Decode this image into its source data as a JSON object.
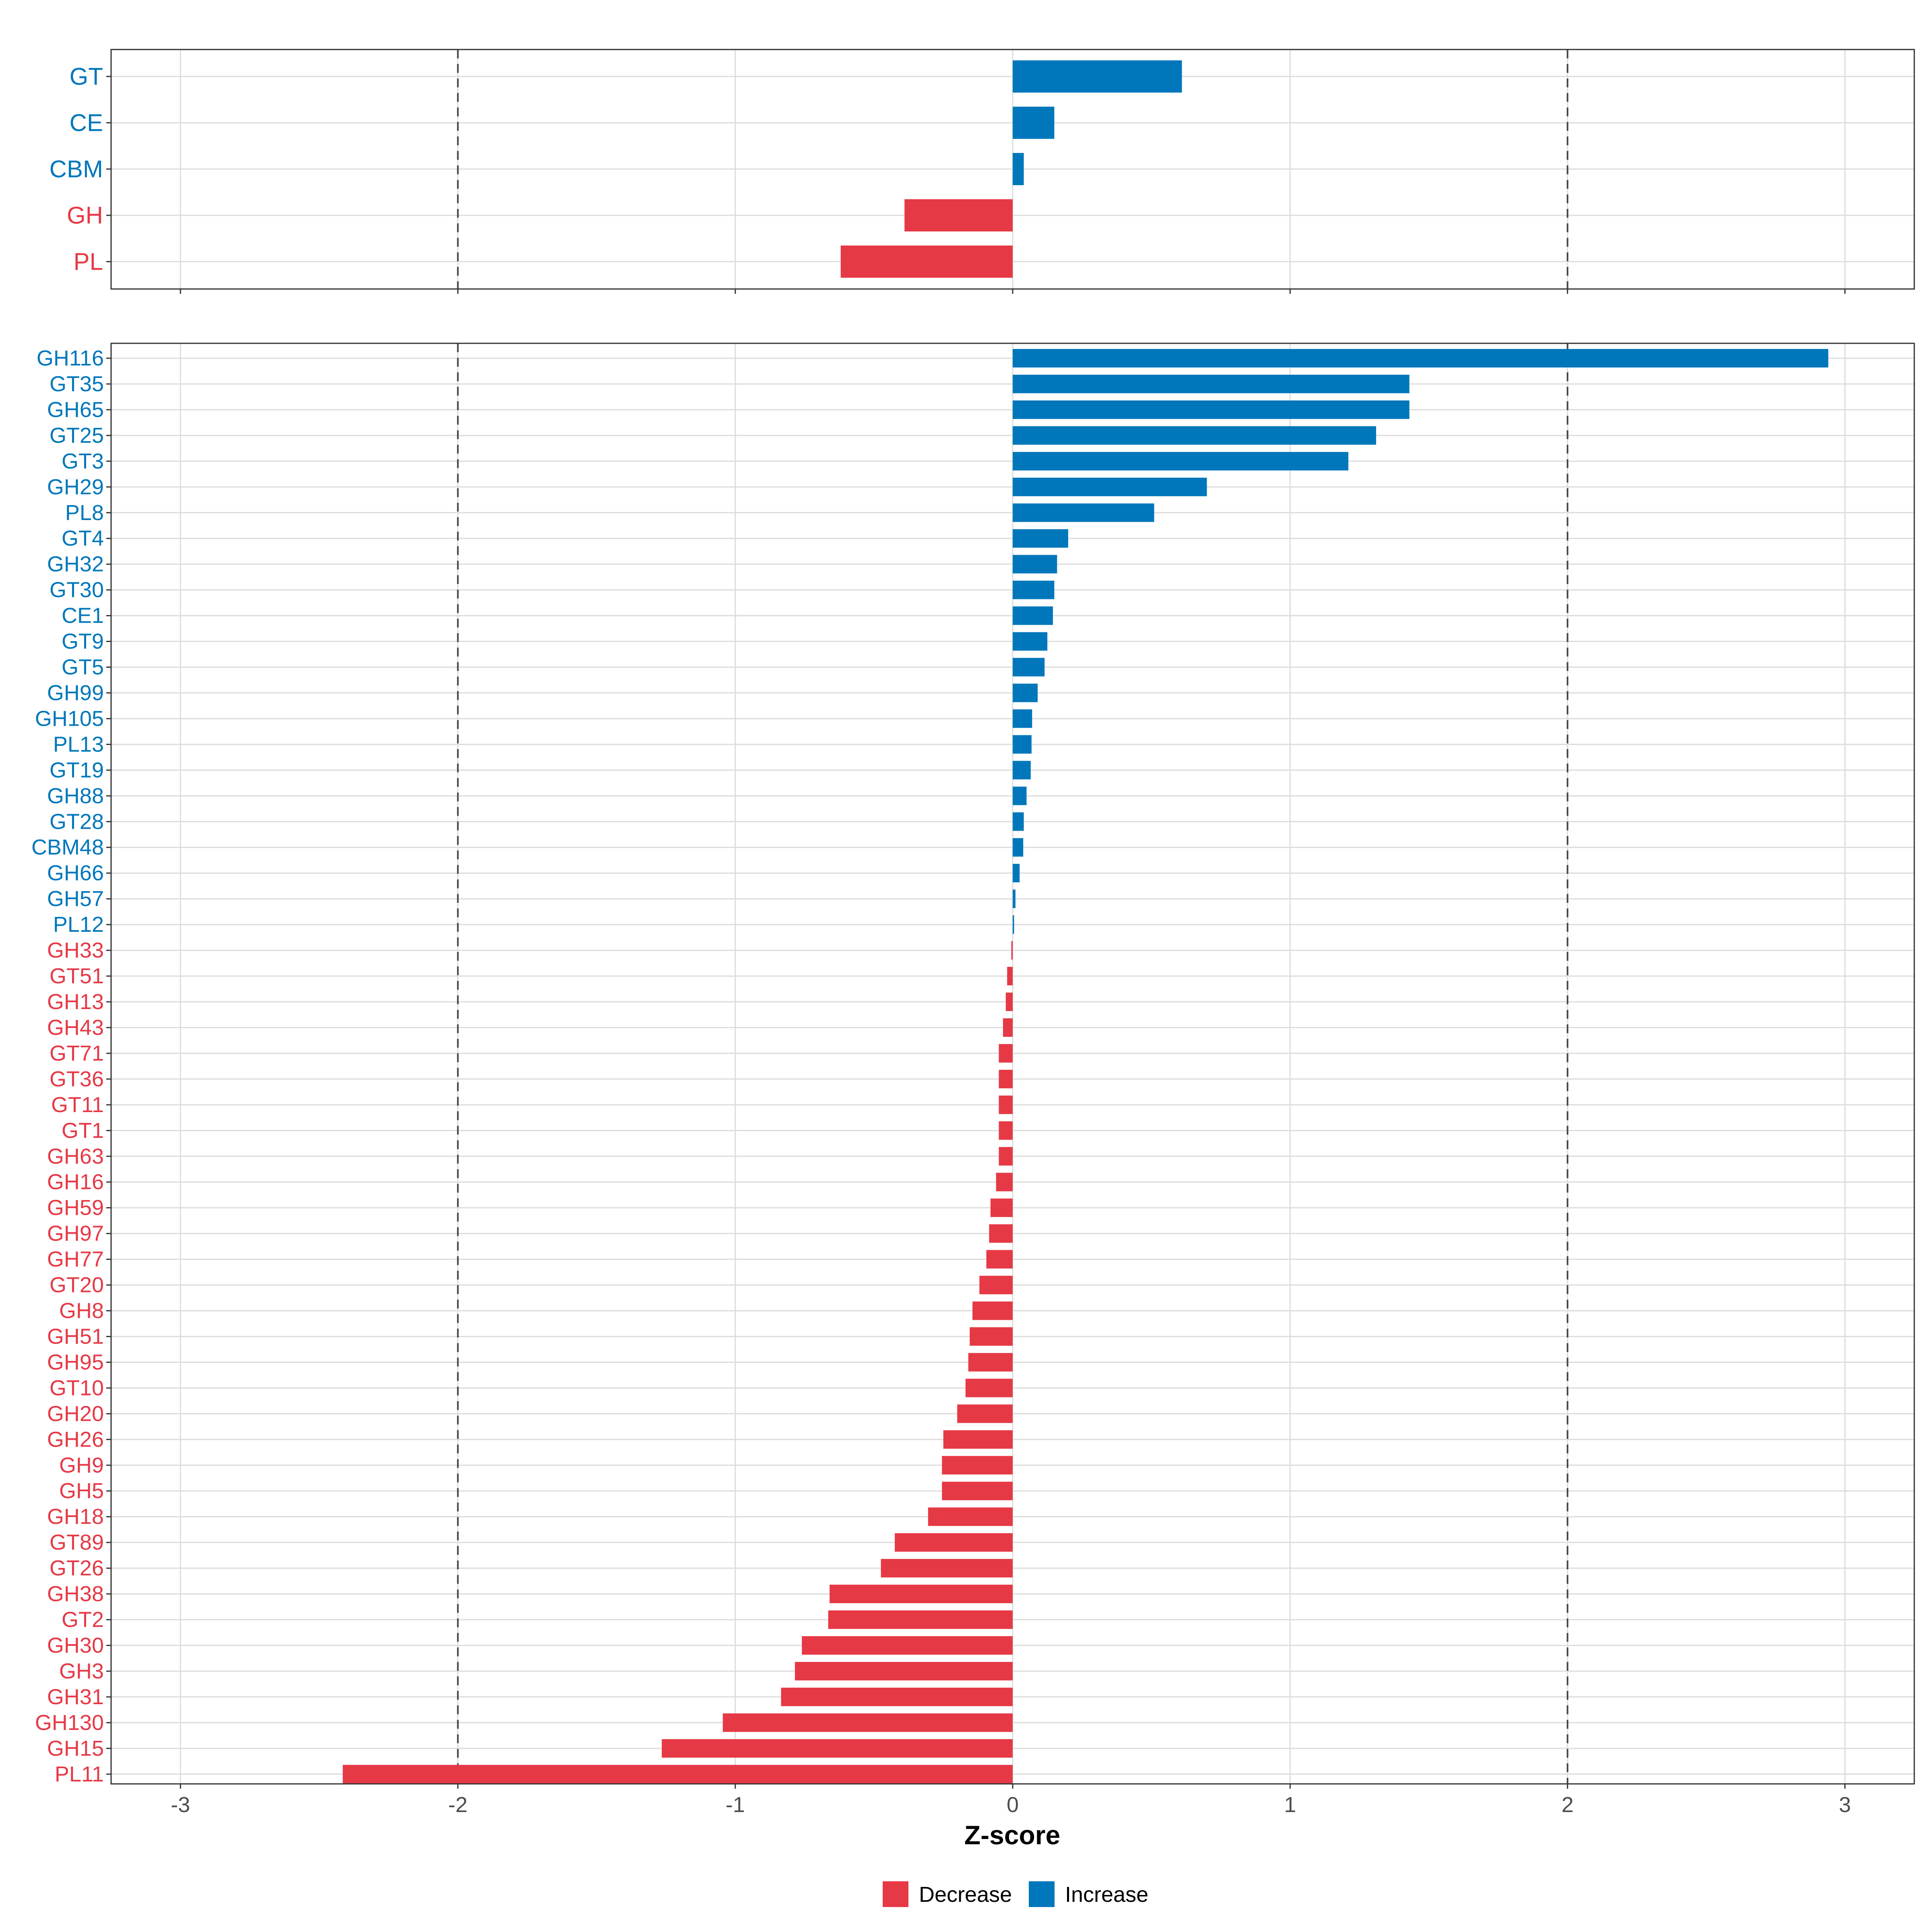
{
  "chart_data": {
    "type": "bar",
    "orientation": "horizontal",
    "xlabel": "Z-score",
    "xlim": [
      -3.25,
      3.25
    ],
    "xticks": [
      -3,
      -2,
      -1,
      0,
      1,
      2,
      3
    ],
    "xtick_labels": [
      "-3",
      "-2",
      "-1",
      "0",
      "1",
      "2",
      "3"
    ],
    "reference_lines": [
      -2,
      2
    ],
    "grid": true,
    "colors": {
      "Decrease": "#e63946",
      "Increase": "#0077bb"
    },
    "legend": {
      "position": "bottom",
      "entries": [
        {
          "label": "Decrease",
          "color_key": "Decrease"
        },
        {
          "label": "Increase",
          "color_key": "Increase"
        }
      ]
    },
    "panels": [
      {
        "name": "class",
        "categories": [
          "GT",
          "CE",
          "CBM",
          "GH",
          "PL"
        ],
        "values": [
          0.61,
          0.15,
          0.04,
          -0.39,
          -0.62
        ],
        "groups": [
          "Increase",
          "Increase",
          "Increase",
          "Decrease",
          "Decrease"
        ]
      },
      {
        "name": "family",
        "categories": [
          "GH116",
          "GT35",
          "GH65",
          "GT25",
          "GT3",
          "GH29",
          "PL8",
          "GT4",
          "GH32",
          "GT30",
          "CE1",
          "GT9",
          "GT5",
          "GH99",
          "GH105",
          "PL13",
          "GT19",
          "GH88",
          "GT28",
          "CBM48",
          "GH66",
          "GH57",
          "PL12",
          "GH33",
          "GT51",
          "GH13",
          "GH43",
          "GT71",
          "GT36",
          "GT11",
          "GT1",
          "GH63",
          "GH16",
          "GH59",
          "GH97",
          "GH77",
          "GT20",
          "GH8",
          "GH51",
          "GH95",
          "GT10",
          "GH20",
          "GH26",
          "GH9",
          "GH5",
          "GH18",
          "GT89",
          "GT26",
          "GH38",
          "GT2",
          "GH30",
          "GH3",
          "GH31",
          "GH130",
          "GH15",
          "PL11"
        ],
        "values": [
          2.94,
          1.43,
          1.43,
          1.31,
          1.21,
          0.7,
          0.51,
          0.2,
          0.16,
          0.15,
          0.145,
          0.125,
          0.115,
          0.09,
          0.07,
          0.068,
          0.065,
          0.05,
          0.04,
          0.038,
          0.025,
          0.01,
          0.005,
          -0.005,
          -0.02,
          -0.025,
          -0.035,
          -0.05,
          -0.05,
          -0.05,
          -0.05,
          -0.05,
          -0.06,
          -0.08,
          -0.085,
          -0.095,
          -0.12,
          -0.145,
          -0.155,
          -0.16,
          -0.17,
          -0.2,
          -0.25,
          -0.255,
          -0.255,
          -0.305,
          -0.425,
          -0.475,
          -0.66,
          -0.665,
          -0.76,
          -0.785,
          -0.835,
          -1.045,
          -1.265,
          -2.415
        ],
        "groups": [
          "Increase",
          "Increase",
          "Increase",
          "Increase",
          "Increase",
          "Increase",
          "Increase",
          "Increase",
          "Increase",
          "Increase",
          "Increase",
          "Increase",
          "Increase",
          "Increase",
          "Increase",
          "Increase",
          "Increase",
          "Increase",
          "Increase",
          "Increase",
          "Increase",
          "Increase",
          "Increase",
          "Decrease",
          "Decrease",
          "Decrease",
          "Decrease",
          "Decrease",
          "Decrease",
          "Decrease",
          "Decrease",
          "Decrease",
          "Decrease",
          "Decrease",
          "Decrease",
          "Decrease",
          "Decrease",
          "Decrease",
          "Decrease",
          "Decrease",
          "Decrease",
          "Decrease",
          "Decrease",
          "Decrease",
          "Decrease",
          "Decrease",
          "Decrease",
          "Decrease",
          "Decrease",
          "Decrease",
          "Decrease",
          "Decrease",
          "Decrease",
          "Decrease",
          "Decrease",
          "Decrease"
        ]
      }
    ]
  }
}
